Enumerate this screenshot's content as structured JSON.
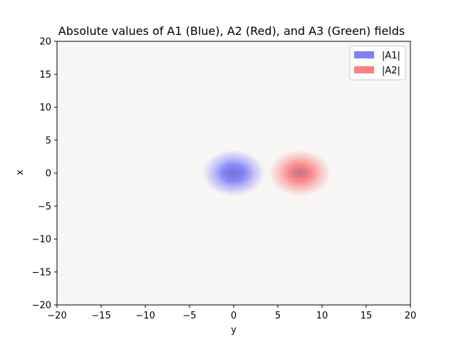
{
  "chart_data": {
    "type": "heatmap",
    "title": "Absolute values of A1 (Blue), A2 (Red), and A3 (Green) fields",
    "xlabel": "y",
    "ylabel": "x",
    "xlim": [
      -20,
      20
    ],
    "ylim": [
      -20,
      20
    ],
    "xticks": [
      -20,
      -15,
      -10,
      -5,
      0,
      5,
      10,
      15,
      20
    ],
    "yticks": [
      -20,
      -15,
      -10,
      -5,
      0,
      5,
      10,
      15,
      20
    ],
    "xtick_labels": [
      "−20",
      "−15",
      "−10",
      "−5",
      "0",
      "5",
      "10",
      "15",
      "20"
    ],
    "ytick_labels": [
      "−20",
      "−15",
      "−10",
      "−5",
      "0",
      "5",
      "10",
      "15",
      "20"
    ],
    "background_color": "#f7f6f5",
    "legend_position": "upper right",
    "series": [
      {
        "name": "|A1|",
        "color": "#0000ff",
        "center": [
          0,
          0
        ],
        "width": 1.6
      },
      {
        "name": "|A2|",
        "color": "#ff0000",
        "center": [
          7.5,
          0
        ],
        "width": 1.6
      }
    ],
    "grid": false
  }
}
